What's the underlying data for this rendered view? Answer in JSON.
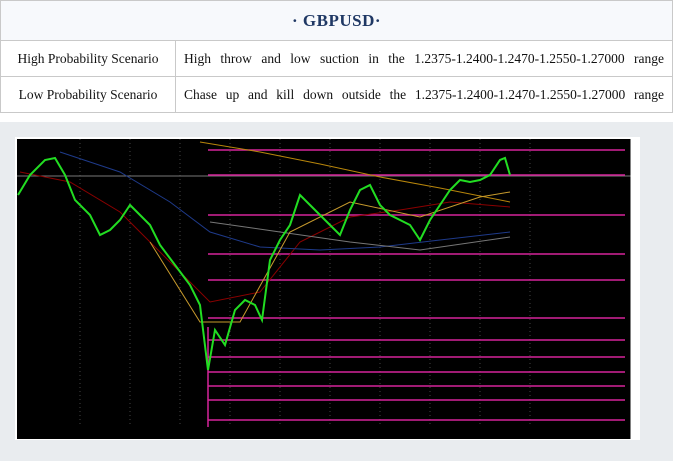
{
  "header": {
    "title": "· GBPUSD·"
  },
  "table": {
    "rows": [
      [
        "High Probability Scenario",
        "High throw and low suction in the 1.2375-1.2400-1.2470-1.2550-1.27000 range"
      ],
      [
        "Low Probability Scenario",
        "Chase up and kill down outside the 1.2375-1.2400-1.2470-1.2550-1.27000 range"
      ]
    ]
  }
}
